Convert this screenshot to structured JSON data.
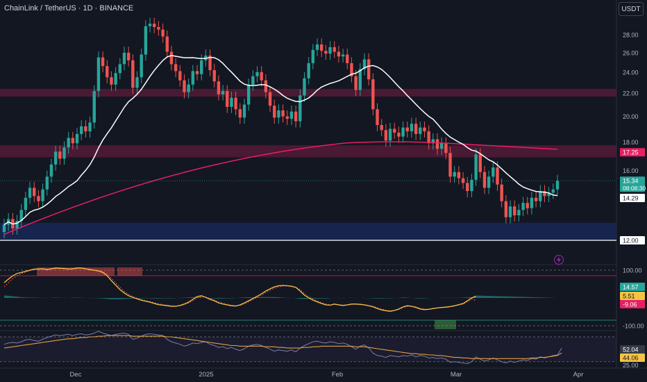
{
  "header": {
    "title": "ChainLink / TetherUS · 1D · BINANCE",
    "currency_button": "USDT"
  },
  "colors": {
    "background": "#131722",
    "up": "#26a69a",
    "down": "#ef5350",
    "ma_fast": "#ffffff",
    "ma_slow": "#e91e63",
    "supply_zone": "#5d1b3a",
    "demand_zone": "#1a2a5c",
    "osc_main": "#f6c343",
    "osc_signal": "#ef5350",
    "rsi_line": "#7e7ea8",
    "rsi_ma": "#e0a040"
  },
  "chart_data": [
    {
      "type": "candlestick",
      "title": "ChainLink / TetherUS · 1D · BINANCE",
      "x_ticks": [
        "Dec",
        "2025",
        "Feb",
        "Mar",
        "Apr"
      ],
      "y_ticks": [
        "28.00",
        "26.00",
        "24.00",
        "22.00",
        "20.00",
        "18.00",
        "16.00",
        "12.00"
      ],
      "ylim": [
        12.0,
        30.0
      ],
      "closes": [
        12.8,
        13.1,
        12.6,
        13.0,
        13.6,
        14.3,
        14.9,
        14.4,
        14.1,
        14.8,
        15.6,
        16.4,
        17.3,
        16.8,
        17.6,
        18.3,
        17.9,
        18.6,
        19.2,
        18.8,
        19.5,
        22.2,
        25.5,
        24.6,
        23.5,
        22.8,
        23.9,
        24.8,
        26.0,
        25.2,
        22.5,
        23.5,
        25.8,
        29.0,
        29.3,
        28.9,
        28.6,
        27.8,
        26.1,
        24.8,
        24.1,
        23.2,
        22.1,
        22.8,
        24.1,
        23.8,
        25.2,
        25.7,
        24.2,
        23.1,
        21.9,
        22.2,
        20.8,
        21.6,
        20.6,
        19.9,
        21.0,
        22.8,
        23.6,
        24.0,
        23.2,
        22.1,
        20.9,
        19.9,
        20.5,
        20.0,
        19.8,
        20.4,
        19.6,
        21.8,
        23.4,
        24.9,
        26.3,
        26.9,
        26.2,
        25.9,
        26.6,
        26.1,
        25.6,
        25.8,
        24.9,
        23.6,
        22.3,
        24.3,
        25.3,
        23.3,
        20.6,
        19.3,
        18.9,
        18.1,
        19.0,
        18.7,
        18.4,
        19.1,
        18.8,
        19.4,
        18.6,
        19.1,
        18.8,
        17.9,
        18.2,
        17.5,
        17.9,
        17.2,
        15.6,
        15.9,
        15.5,
        15.2,
        14.7,
        15.4,
        17.1,
        15.9,
        14.9,
        15.6,
        16.2,
        15.1,
        14.1,
        13.2,
        13.8,
        13.3,
        13.6,
        14.0,
        13.7,
        14.3,
        14.1,
        14.7,
        14.4,
        14.6,
        14.8,
        15.34
      ],
      "series": [
        {
          "name": "",
          "type": "line",
          "values_ref": "ma_fast",
          "start": 0
        },
        {
          "name": "",
          "type": "line",
          "values_ref": "ma_slow"
        }
      ],
      "annotations": [
        {
          "text": "17.25",
          "value": 17.25,
          "color": "#e91e63"
        },
        {
          "text": "15.34",
          "value": 15.34,
          "color": "#26a69a",
          "countdown": "08:08:30"
        },
        {
          "text": "14.29",
          "value": 14.29,
          "color": "#ffffff"
        },
        {
          "text": "12.00",
          "value": 12.0,
          "color": "#ffffff"
        }
      ],
      "zones": [
        {
          "from": 21.7,
          "to": 22.4,
          "kind": "supply"
        },
        {
          "from": 16.9,
          "to": 17.75,
          "kind": "supply"
        },
        {
          "from": 12.0,
          "to": 12.9,
          "kind": "demand"
        }
      ],
      "horizontal_line": 12.0,
      "last_price_line": 15.34
    },
    {
      "type": "line",
      "title": "",
      "y_ticks": [
        "100.00",
        "-100.00"
      ],
      "ylim": [
        -115,
        115
      ],
      "levels": [
        100,
        -100
      ],
      "annotations": [
        {
          "text": "14.57",
          "color": "#26a69a"
        },
        {
          "text": "5.51",
          "color": "#f6c343"
        },
        {
          "text": "-9.06",
          "color": "#e91e63"
        }
      ],
      "series": [
        {
          "name": "",
          "values": [
            55,
            68,
            80,
            88,
            92,
            96,
            100,
            104,
            104,
            105,
            102,
            105,
            108,
            107,
            106,
            104,
            105,
            108,
            108,
            105,
            102,
            100,
            97,
            92,
            80,
            62,
            46,
            30,
            18,
            8,
            2,
            -3,
            -8,
            -12,
            -15,
            -20,
            -24,
            -26,
            -28,
            -30,
            -30,
            -27,
            -22,
            -15,
            -5,
            5,
            8,
            2,
            -5,
            -10,
            -18,
            -22,
            -25,
            -28,
            -29,
            -25,
            -18,
            -10,
            -2,
            6,
            15,
            25,
            33,
            40,
            44,
            45,
            44,
            42,
            38,
            25,
            10,
            0,
            -8,
            -14,
            -20,
            -25,
            -26,
            -22,
            -25,
            -27,
            -25,
            -22,
            -22,
            -23,
            -25,
            -28,
            -32,
            -38,
            -43,
            -46,
            -48,
            -45,
            -40,
            -32,
            -28,
            -30,
            -34,
            -40,
            -42,
            -41,
            -38,
            -36,
            -34,
            -33,
            -31,
            -28,
            -24,
            -20,
            -10,
            0,
            5.51
          ]
        },
        {
          "name": "",
          "values": [
            40,
            55,
            70,
            80,
            88,
            93,
            98,
            102,
            103,
            104,
            103,
            104,
            106,
            106,
            105,
            104,
            104,
            106,
            107,
            105,
            103,
            101,
            99,
            95,
            86,
            70,
            54,
            38,
            24,
            13,
            5,
            -1,
            -6,
            -10,
            -13,
            -17,
            -21,
            -24,
            -26,
            -28,
            -29,
            -28,
            -24,
            -18,
            -10,
            0,
            5,
            3,
            -2,
            -8,
            -14,
            -19,
            -23,
            -26,
            -28,
            -27,
            -21,
            -14,
            -6,
            2,
            10,
            20,
            28,
            35,
            40,
            43,
            43,
            42,
            39,
            30,
            16,
            5,
            -4,
            -11,
            -17,
            -22,
            -25,
            -23,
            -24,
            -26,
            -25,
            -23,
            -22,
            -23,
            -24,
            -27,
            -30,
            -35,
            -40,
            -44,
            -46,
            -45,
            -41,
            -35,
            -30,
            -30,
            -32,
            -37,
            -40,
            -40,
            -38,
            -36,
            -35,
            -34,
            -32,
            -29,
            -25,
            -22,
            -14,
            -4,
            -9.06
          ]
        }
      ]
    },
    {
      "type": "line",
      "title": "",
      "y_ticks": [
        "25.00"
      ],
      "ylim": [
        22,
        80
      ],
      "bands": [
        70,
        30
      ],
      "annotations": [
        {
          "text": "52.04",
          "color": "#363a45"
        },
        {
          "text": "44.06",
          "color": "#f6c343"
        }
      ],
      "series": [
        {
          "name": "",
          "values": [
            58,
            60,
            61,
            60,
            62,
            65,
            66,
            64,
            63,
            66,
            69,
            71,
            73,
            72,
            73,
            74,
            72,
            74,
            75,
            73,
            74,
            76,
            79,
            76,
            74,
            72,
            74,
            75,
            76,
            74,
            66,
            68,
            71,
            74,
            75,
            74,
            73,
            72,
            66,
            62,
            60,
            58,
            55,
            57,
            60,
            59,
            61,
            62,
            58,
            56,
            53,
            54,
            51,
            53,
            50,
            48,
            51,
            55,
            57,
            58,
            56,
            53,
            50,
            47,
            49,
            48,
            47,
            49,
            46,
            52,
            56,
            59,
            62,
            63,
            61,
            60,
            62,
            61,
            59,
            60,
            58,
            54,
            50,
            55,
            57,
            52,
            44,
            40,
            39,
            37,
            40,
            39,
            38,
            40,
            39,
            41,
            38,
            40,
            39,
            36,
            37,
            35,
            36,
            34,
            29,
            30,
            29,
            28,
            27,
            30,
            38,
            34,
            31,
            33,
            36,
            33,
            30,
            28,
            31,
            29,
            31,
            33,
            32,
            35,
            34,
            38,
            36,
            38,
            40,
            41,
            52.04
          ]
        },
        {
          "name": "",
          "values": [
            52,
            53,
            54,
            55,
            56,
            57,
            58,
            59,
            60,
            61,
            62,
            63,
            64,
            65,
            66,
            67,
            67,
            68,
            69,
            69,
            70,
            70,
            71,
            71,
            72,
            72,
            72,
            72,
            72,
            72,
            71,
            71,
            71,
            71,
            71,
            71,
            71,
            71,
            70,
            70,
            69,
            68,
            67,
            66,
            65,
            64,
            63,
            62,
            61,
            60,
            59,
            58,
            57,
            56,
            56,
            55,
            55,
            55,
            55,
            55,
            55,
            54,
            54,
            54,
            53,
            53,
            52,
            52,
            52,
            52,
            53,
            53,
            54,
            54,
            55,
            55,
            55,
            55,
            55,
            55,
            55,
            55,
            54,
            54,
            54,
            53,
            52,
            51,
            50,
            49,
            48,
            47,
            46,
            45,
            44,
            43,
            43,
            42,
            42,
            41,
            41,
            40,
            40,
            39,
            38,
            37,
            37,
            36,
            36,
            35,
            35,
            35,
            35,
            35,
            35,
            35,
            35,
            35,
            35,
            35,
            35,
            35,
            35,
            36,
            36,
            37,
            37,
            38,
            39,
            40,
            44.06
          ]
        }
      ]
    }
  ]
}
